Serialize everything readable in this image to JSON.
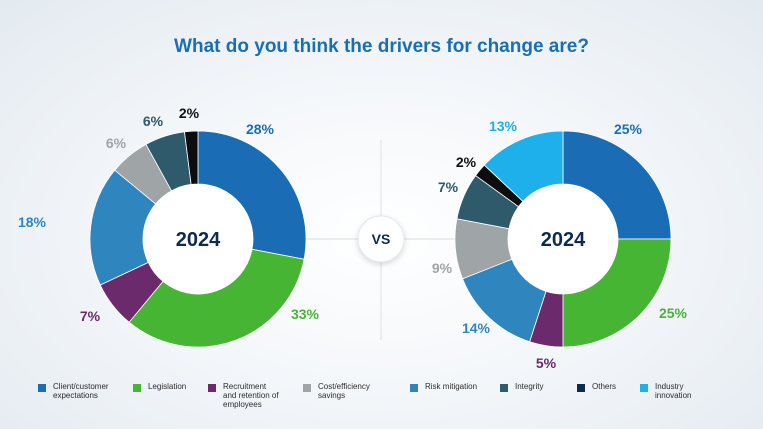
{
  "title": "What do you think the drivers for change are?",
  "vs_label": "VS",
  "legend": [
    {
      "label": "Client/customer\nexpectations",
      "color": "#1a6db5"
    },
    {
      "label": "Legislation",
      "color": "#46b534"
    },
    {
      "label": "Recruitment\nand retention of\nemployees",
      "color": "#6b2a6b"
    },
    {
      "label": "Cost/efficiency\nsavings",
      "color": "#9fa5a7"
    },
    {
      "label": "Risk mitigation",
      "color": "#2f86bf"
    },
    {
      "label": "Integrity",
      "color": "#2e5a6b"
    },
    {
      "label": "Others",
      "color": "#0d2a4d"
    },
    {
      "label": "Industry\ninnovation",
      "color": "#1eb0ea"
    }
  ],
  "chart_data": [
    {
      "type": "donut",
      "center_label": "2024",
      "slices": [
        {
          "name": "Client/customer expectations",
          "value": 28,
          "label": "28%",
          "color": "#1a6db5",
          "label_color": "#1a6db5"
        },
        {
          "name": "Legislation",
          "value": 33,
          "label": "33%",
          "color": "#46b534",
          "label_color": "#46b534"
        },
        {
          "name": "Recruitment and retention of employees",
          "value": 7,
          "label": "7%",
          "color": "#6b2a6b",
          "label_color": "#6b2a6b"
        },
        {
          "name": "Risk mitigation",
          "value": 18,
          "label": "18%",
          "color": "#2f86bf",
          "label_color": "#2f86bf"
        },
        {
          "name": "Cost/efficiency savings",
          "value": 6,
          "label": "6%",
          "color": "#9fa5a7",
          "label_color": "#9fa5a7"
        },
        {
          "name": "Integrity",
          "value": 6,
          "label": "6%",
          "color": "#2e5a6b",
          "label_color": "#2e5a6b"
        },
        {
          "name": "Others",
          "value": 2,
          "label": "2%",
          "color": "#0d0d0d",
          "label_color": "#111111"
        }
      ]
    },
    {
      "type": "donut",
      "center_label": "2024",
      "slices": [
        {
          "name": "Client/customer expectations",
          "value": 25,
          "label": "25%",
          "color": "#1a6db5",
          "label_color": "#1a6db5"
        },
        {
          "name": "Legislation",
          "value": 25,
          "label": "25%",
          "color": "#46b534",
          "label_color": "#46b534"
        },
        {
          "name": "Recruitment and retention of employees",
          "value": 5,
          "label": "5%",
          "color": "#6b2a6b",
          "label_color": "#6b2a6b"
        },
        {
          "name": "Risk mitigation",
          "value": 14,
          "label": "14%",
          "color": "#2f86bf",
          "label_color": "#2f86bf"
        },
        {
          "name": "Cost/efficiency savings",
          "value": 9,
          "label": "9%",
          "color": "#9fa5a7",
          "label_color": "#9fa5a7"
        },
        {
          "name": "Integrity",
          "value": 7,
          "label": "7%",
          "color": "#2e5a6b",
          "label_color": "#2e5a6b"
        },
        {
          "name": "Others",
          "value": 2,
          "label": "2%",
          "color": "#0d0d0d",
          "label_color": "#111111"
        },
        {
          "name": "Industry innovation",
          "value": 13,
          "label": "13%",
          "color": "#1eb0ea",
          "label_color": "#1eb0ea"
        }
      ]
    }
  ]
}
